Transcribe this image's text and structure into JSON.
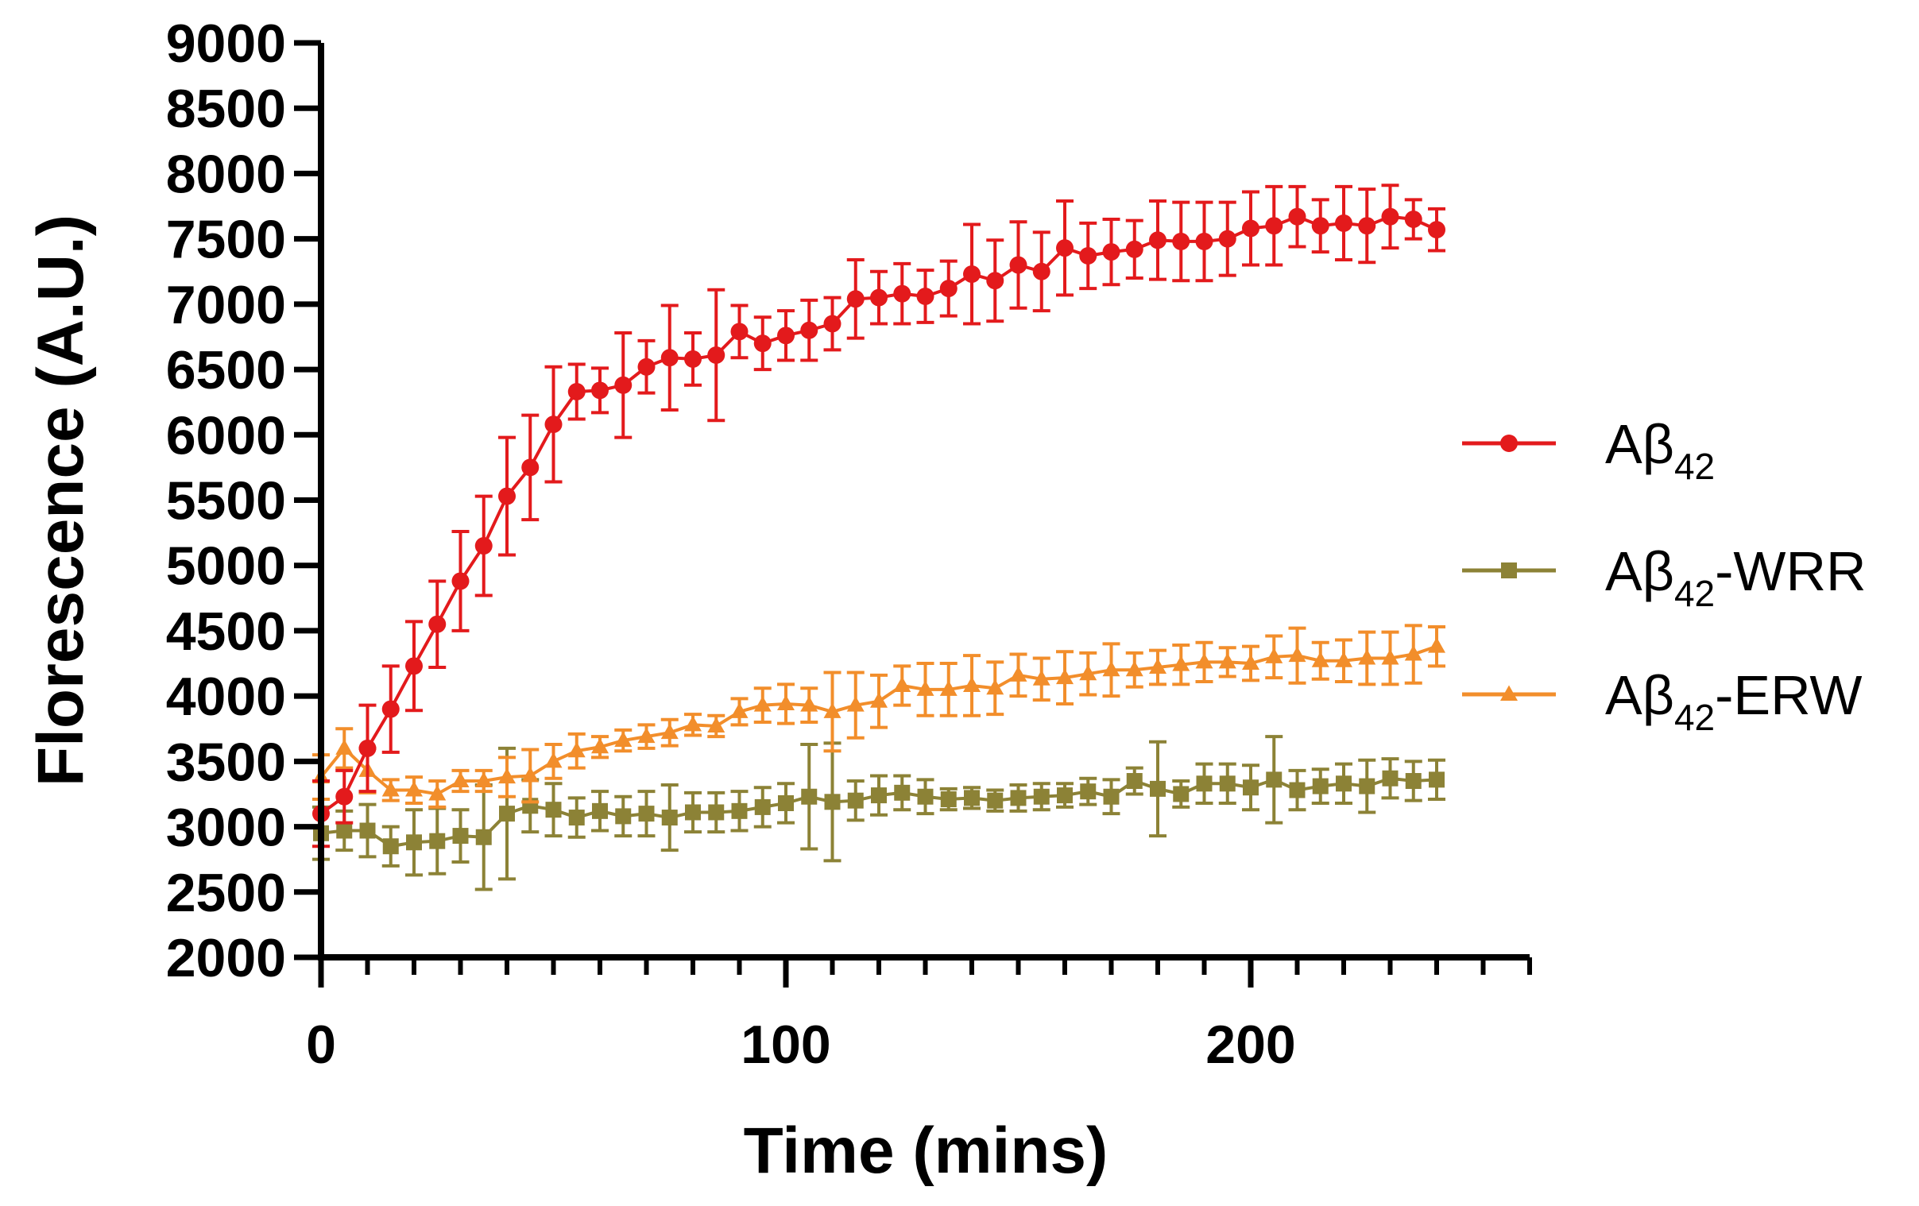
{
  "chart_data": {
    "type": "line",
    "title": "",
    "xlabel": "Time (mins)",
    "ylabel": "Florescence (A.U.)",
    "xlim": [
      0,
      260
    ],
    "ylim": [
      2000,
      9000
    ],
    "x_ticks": [
      0,
      100,
      200
    ],
    "x_tick_labels": [
      "0",
      "100",
      "200"
    ],
    "y_ticks": [
      2000,
      2500,
      3000,
      3500,
      4000,
      4500,
      5000,
      5500,
      6000,
      6500,
      7000,
      7500,
      8000,
      8500,
      9000
    ],
    "y_tick_labels": [
      "2000",
      "2500",
      "3000",
      "3500",
      "4000",
      "4500",
      "5000",
      "5500",
      "6000",
      "6500",
      "7000",
      "7500",
      "8000",
      "8500",
      "9000"
    ],
    "grid": false,
    "legend_position": "right",
    "x": [
      0,
      5,
      10,
      15,
      20,
      25,
      30,
      35,
      40,
      45,
      50,
      55,
      60,
      65,
      70,
      75,
      80,
      85,
      90,
      95,
      100,
      105,
      110,
      115,
      120,
      125,
      130,
      135,
      140,
      145,
      150,
      155,
      160,
      165,
      170,
      175,
      180,
      185,
      190,
      195,
      200,
      205,
      210,
      215,
      220,
      225,
      230,
      235,
      240
    ],
    "series": [
      {
        "name": "Aβ42",
        "base": "Aβ",
        "subscript": "42",
        "suffix": "",
        "color": "#e31a1c",
        "marker": "circle",
        "values": [
          3100,
          3230,
          3600,
          3900,
          4230,
          4550,
          4880,
          5150,
          5530,
          5750,
          6080,
          6330,
          6340,
          6380,
          6520,
          6590,
          6580,
          6610,
          6790,
          6700,
          6760,
          6800,
          6850,
          7040,
          7050,
          7080,
          7060,
          7120,
          7230,
          7180,
          7300,
          7250,
          7430,
          7370,
          7400,
          7420,
          7490,
          7480,
          7480,
          7500,
          7580,
          7600,
          7670,
          7600,
          7620,
          7600,
          7670,
          7650,
          7570
        ],
        "errors": [
          250,
          200,
          330,
          330,
          340,
          330,
          380,
          380,
          450,
          400,
          440,
          210,
          170,
          400,
          200,
          400,
          200,
          500,
          200,
          200,
          190,
          230,
          200,
          300,
          200,
          230,
          200,
          210,
          380,
          310,
          330,
          300,
          360,
          250,
          250,
          220,
          300,
          300,
          300,
          280,
          280,
          300,
          230,
          200,
          280,
          280,
          240,
          150,
          160
        ]
      },
      {
        "name": "Aβ42-WRR",
        "base": "Aβ",
        "subscript": "42",
        "suffix": "-WRR",
        "color": "#8c8236",
        "marker": "square",
        "values": [
          2950,
          2970,
          2970,
          2850,
          2880,
          2890,
          2930,
          2920,
          3100,
          3160,
          3130,
          3070,
          3120,
          3080,
          3100,
          3070,
          3110,
          3110,
          3120,
          3150,
          3180,
          3230,
          3190,
          3200,
          3240,
          3260,
          3230,
          3210,
          3220,
          3200,
          3220,
          3230,
          3240,
          3270,
          3230,
          3350,
          3290,
          3250,
          3330,
          3330,
          3300,
          3360,
          3280,
          3310,
          3330,
          3310,
          3370,
          3350,
          3360
        ],
        "errors": [
          200,
          150,
          200,
          150,
          250,
          250,
          200,
          400,
          500,
          200,
          200,
          150,
          150,
          150,
          170,
          250,
          150,
          150,
          150,
          150,
          150,
          400,
          450,
          150,
          150,
          130,
          130,
          80,
          80,
          80,
          100,
          100,
          90,
          100,
          130,
          100,
          360,
          100,
          150,
          150,
          170,
          330,
          150,
          130,
          150,
          200,
          150,
          150,
          150
        ]
      },
      {
        "name": "Aβ42-ERW",
        "base": "Aβ",
        "subscript": "42",
        "suffix": "-ERW",
        "color": "#f28e2b",
        "marker": "triangle",
        "values": [
          3380,
          3600,
          3430,
          3280,
          3280,
          3250,
          3350,
          3350,
          3380,
          3390,
          3500,
          3580,
          3610,
          3660,
          3690,
          3720,
          3780,
          3770,
          3880,
          3930,
          3940,
          3930,
          3880,
          3930,
          3960,
          4080,
          4050,
          4050,
          4080,
          4060,
          4160,
          4130,
          4140,
          4170,
          4200,
          4200,
          4220,
          4240,
          4260,
          4260,
          4250,
          4300,
          4310,
          4270,
          4270,
          4290,
          4290,
          4320,
          4380
        ],
        "errors": [
          170,
          150,
          170,
          80,
          100,
          100,
          80,
          80,
          150,
          200,
          130,
          130,
          80,
          80,
          90,
          100,
          80,
          80,
          100,
          130,
          150,
          130,
          300,
          250,
          200,
          150,
          200,
          200,
          230,
          200,
          160,
          160,
          200,
          160,
          200,
          130,
          130,
          150,
          150,
          110,
          130,
          160,
          210,
          140,
          160,
          200,
          200,
          220,
          150
        ]
      }
    ]
  }
}
